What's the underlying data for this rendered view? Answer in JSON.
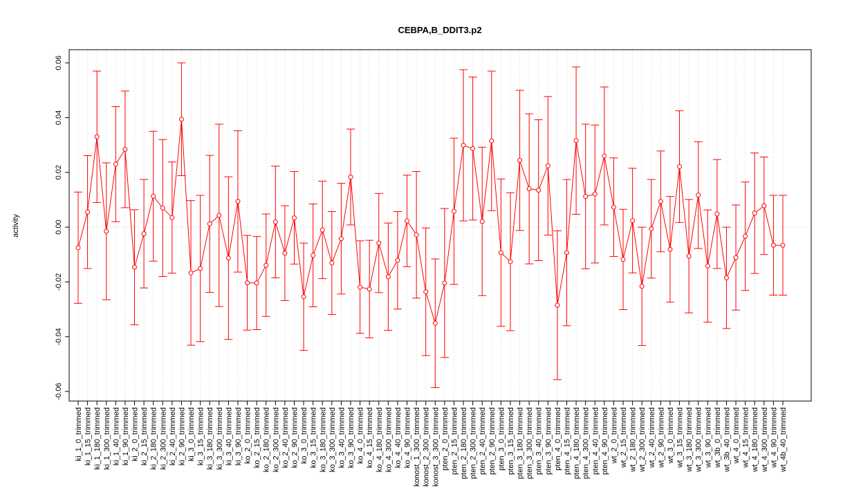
{
  "chart_data": {
    "type": "errorbar-line",
    "title": "CEBPA,B_DDIT3.p2",
    "ylabel": "activity",
    "categories": [
      "ki_1_0_trimmed",
      "ki_1_15_trimmed",
      "ki_1_180_trimmed",
      "ki_1_300_trimmed",
      "ki_1_40_trimmed",
      "ki_1_90_trimmed",
      "ki_2_0_trimmed",
      "ki_2_15_trimmed",
      "ki_2_180_trimmed",
      "ki_2_300_trimmed",
      "ki_2_40_trimmed",
      "ki_2_90_trimmed",
      "ki_3_0_trimmed",
      "ki_3_15_trimmed",
      "ki_3_180_trimmed",
      "ki_3_300_trimmed",
      "ki_3_40_trimmed",
      "ki_3_90_trimmed",
      "ko_2_0_trimmed",
      "ko_2_15_trimmed",
      "ko_2_180_trimmed",
      "ko_2_300_trimmed",
      "ko_2_40_trimmed",
      "ko_2_90_trimmed",
      "ko_3_0_trimmed",
      "ko_3_15_trimmed",
      "ko_3_180_trimmed",
      "ko_3_300_trimmed",
      "ko_3_40_trimmed",
      "ko_3_90_trimmed",
      "ko_4_0_trimmed",
      "ko_4_15_trimmed",
      "ko_4_180_trimmed",
      "ko_4_300_trimmed",
      "ko_4_40_trimmed",
      "ko_4_90_trimmed",
      "konost_1_300_trimmed",
      "konost_2_300_trimmed",
      "konost_3_300_trimmed",
      "pten_2_0_trimmed",
      "pten_2_15_trimmed",
      "pten_2_180_trimmed",
      "pten_2_300_trimmed",
      "pten_2_40_trimmed",
      "pten_2_90_trimmed",
      "pten_3_0_trimmed",
      "pten_3_15_trimmed",
      "pten_3_180_trimmed",
      "pten_3_300_trimmed",
      "pten_3_40_trimmed",
      "pten_3_90_trimmed",
      "pten_4_0_trimmed",
      "pten_4_15_trimmed",
      "pten_4_180_trimmed",
      "pten_4_300_trimmed",
      "pten_4_40_trimmed",
      "pten_4_90_trimmed",
      "wt_2_0_trimmed",
      "wt_2_15_trimmed",
      "wt_2_180_trimmed",
      "wt_2_300_trimmed",
      "wt_2_40_trimmed",
      "wt_2_90_trimmed",
      "wt_3_0_trimmed",
      "wt_3_15_trimmed",
      "wt_3_180_trimmed",
      "wt_3_300_trimmed",
      "wt_3_90_trimmed",
      "wt_3b_0_trimmed",
      "wt_3b_40_trimmed",
      "wt_4_0_trimmed",
      "wt_4_15_trimmed",
      "wt_4_180_trimmed",
      "wt_4_300_trimmed",
      "wt_4_90_trimmed",
      "wt_4b_40_trimmed"
    ],
    "values": [
      -0.0075,
      0.0055,
      0.033,
      -0.0015,
      0.023,
      0.0284,
      -0.0146,
      -0.0024,
      0.0113,
      0.007,
      0.0035,
      0.0394,
      -0.0167,
      -0.0151,
      0.0012,
      0.0043,
      -0.0113,
      0.0094,
      -0.0203,
      -0.0204,
      -0.0139,
      0.0019,
      -0.0095,
      0.0034,
      -0.0254,
      -0.0103,
      -0.001,
      -0.0131,
      -0.0042,
      0.0183,
      -0.0219,
      -0.0226,
      -0.0058,
      -0.0181,
      -0.0121,
      0.0023,
      -0.0028,
      -0.0236,
      -0.0351,
      -0.0204,
      0.0058,
      0.0299,
      0.0287,
      0.0021,
      0.0315,
      -0.0093,
      -0.0126,
      0.0244,
      0.014,
      0.0135,
      0.0224,
      -0.0285,
      -0.0093,
      0.0316,
      0.0112,
      0.0121,
      0.026,
      0.0073,
      -0.0118,
      0.0024,
      -0.0216,
      -0.0006,
      0.0094,
      -0.0081,
      0.0221,
      -0.0106,
      0.0117,
      -0.0142,
      0.0048,
      -0.0185,
      -0.0111,
      -0.0033,
      0.0051,
      0.0078,
      -0.0066,
      -0.0066
    ],
    "errors": [
      0.0203,
      0.0206,
      0.024,
      0.025,
      0.021,
      0.0213,
      0.021,
      0.0198,
      0.0237,
      0.025,
      0.0203,
      0.0206,
      0.0264,
      0.0267,
      0.025,
      0.0333,
      0.0297,
      0.0258,
      0.0173,
      0.017,
      0.0187,
      0.0204,
      0.0173,
      0.0169,
      0.0196,
      0.0188,
      0.0178,
      0.0188,
      0.0202,
      0.0175,
      0.0169,
      0.0178,
      0.0181,
      0.0196,
      0.0178,
      0.0167,
      0.0231,
      0.0233,
      0.0235,
      0.0272,
      0.0267,
      0.0276,
      0.0261,
      0.0271,
      0.0255,
      0.0269,
      0.0252,
      0.0256,
      0.0274,
      0.0257,
      0.0253,
      0.0272,
      0.0267,
      0.0269,
      0.0264,
      0.0252,
      0.0252,
      0.018,
      0.0183,
      0.0191,
      0.0216,
      0.018,
      0.0184,
      0.0193,
      0.0204,
      0.0207,
      0.0195,
      0.0205,
      0.0199,
      0.0185,
      0.0192,
      0.0198,
      0.022,
      0.0178,
      0.0182,
      0.0182
    ],
    "color": "#ff0000",
    "ylim": [
      -0.0635,
      0.0648
    ],
    "yticks": [
      {
        "value": -0.06,
        "label": "-0.06"
      },
      {
        "value": -0.04,
        "label": "-0.04"
      },
      {
        "value": -0.02,
        "label": "-0.02"
      },
      {
        "value": 0,
        "label": "0.00"
      },
      {
        "value": 0.02,
        "label": "0.02"
      },
      {
        "value": 0.04,
        "label": "0.04"
      },
      {
        "value": 0.06,
        "label": "0.06"
      }
    ],
    "grid": true
  }
}
